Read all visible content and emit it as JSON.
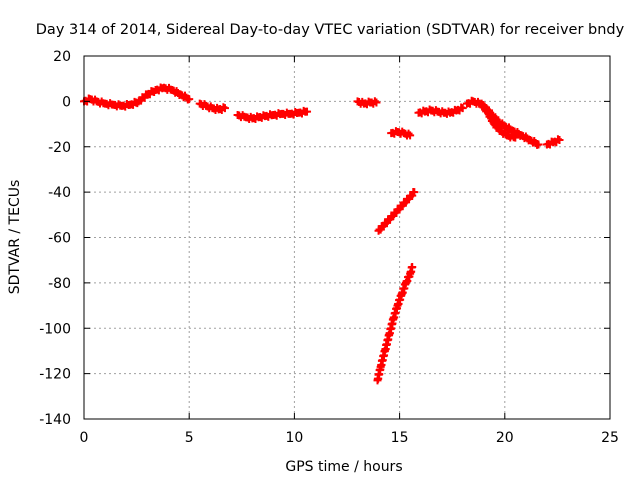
{
  "chart_data": {
    "type": "scatter",
    "title": "Day 314 of 2014, Sidereal Day-to-day VTEC variation (SDTVAR) for receiver bndy",
    "xlabel": "GPS time / hours",
    "ylabel": "SDTVAR / TECUs",
    "xlim": [
      0,
      25
    ],
    "ylim": [
      -140,
      20
    ],
    "xticks": [
      0,
      5,
      10,
      15,
      20,
      25
    ],
    "yticks": [
      20,
      0,
      -20,
      -40,
      -60,
      -80,
      -100,
      -120,
      -140
    ],
    "grid": true,
    "marker": "plus",
    "color": "#ff0000",
    "series": [
      {
        "x": [
          0.0,
          0.3,
          0.6,
          1.0,
          1.4,
          1.8,
          2.2,
          2.6,
          3.0,
          3.4,
          3.8,
          4.2,
          4.6,
          5.0
        ],
        "y": [
          0,
          1,
          0,
          -1,
          -1.5,
          -2,
          -1.5,
          0,
          3,
          5,
          6,
          5,
          3,
          1
        ]
      },
      {
        "x": [
          5.5,
          5.8,
          6.1,
          6.4,
          6.7
        ],
        "y": [
          -1,
          -2,
          -3,
          -3.5,
          -3
        ]
      },
      {
        "x": [
          7.3,
          7.7,
          8.0,
          8.3,
          8.6,
          9.0,
          9.4,
          9.8,
          10.2,
          10.6
        ],
        "y": [
          -6,
          -7,
          -7.5,
          -7,
          -6.5,
          -6,
          -5.5,
          -5.5,
          -5,
          -4.5
        ]
      },
      {
        "x": [
          13.0,
          13.3,
          13.6,
          13.9
        ],
        "y": [
          0,
          -1,
          -0.5,
          -0.5
        ]
      },
      {
        "x": [
          14.6,
          14.9,
          15.2,
          15.5
        ],
        "y": [
          -14,
          -13.5,
          -14,
          -15
        ]
      },
      {
        "x": [
          14.0,
          14.3,
          14.6,
          14.9,
          15.2,
          15.5,
          15.7
        ],
        "y": [
          -57,
          -54,
          -51,
          -48,
          -45,
          -42,
          -40
        ]
      },
      {
        "x": [
          13.95,
          14.1,
          14.3,
          14.5,
          14.7,
          14.9,
          15.1,
          15.3,
          15.5,
          15.6
        ],
        "y": [
          -123,
          -117,
          -110,
          -103,
          -96,
          -90,
          -85,
          -80,
          -76,
          -73
        ]
      },
      {
        "x": [
          15.9,
          16.2,
          16.5,
          16.8,
          17.1,
          17.4,
          17.7,
          18.0
        ],
        "y": [
          -5,
          -4.5,
          -4,
          -4.5,
          -5,
          -5,
          -4,
          -3
        ]
      },
      {
        "x": [
          18.2,
          18.5,
          18.8,
          19.1,
          19.4,
          19.7,
          20.0,
          20.4,
          20.8,
          21.2,
          21.6
        ],
        "y": [
          -1,
          0,
          -1,
          -3,
          -6,
          -9,
          -11,
          -13,
          -15,
          -17,
          -19
        ]
      },
      {
        "x": [
          18.9,
          19.2,
          19.5,
          19.8,
          20.1,
          20.5
        ],
        "y": [
          -1,
          -5,
          -10,
          -13,
          -15,
          -16
        ]
      },
      {
        "x": [
          22.0,
          22.3,
          22.6
        ],
        "y": [
          -19,
          -18,
          -17
        ]
      }
    ]
  }
}
